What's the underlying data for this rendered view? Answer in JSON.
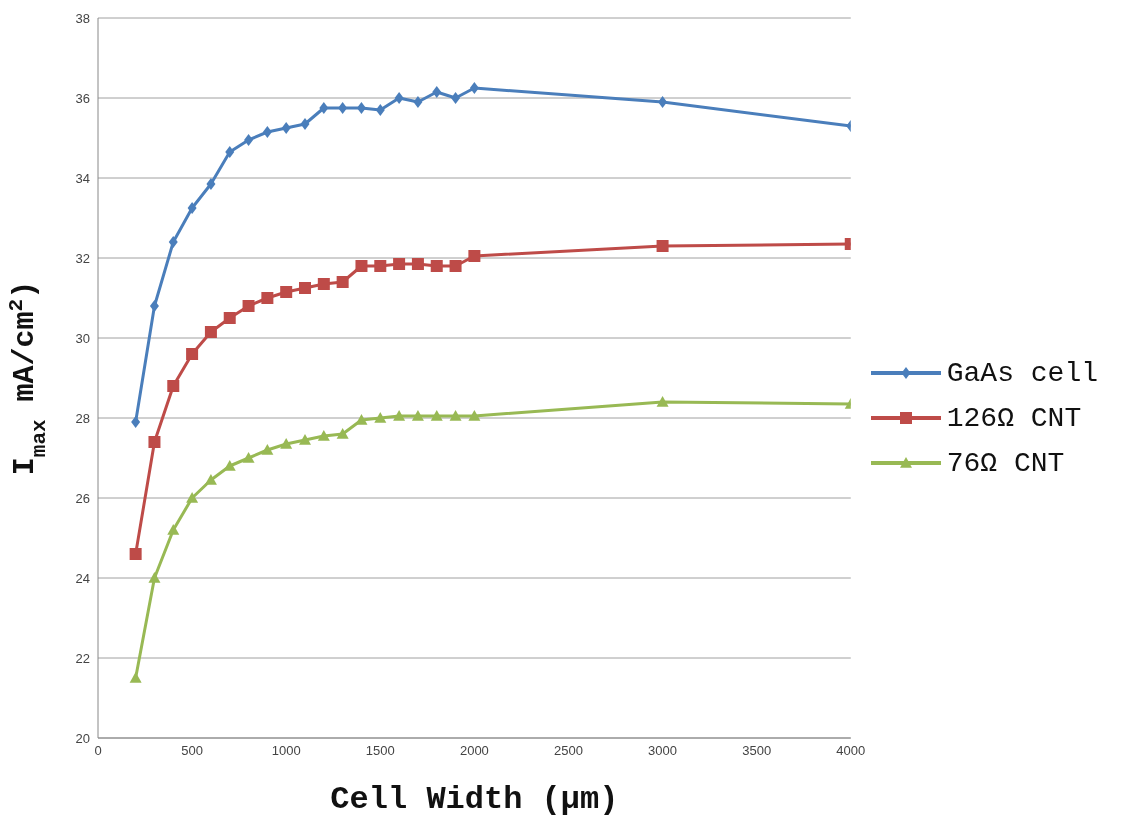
{
  "chart_data": {
    "type": "line",
    "xlabel": "Cell Width (µm)",
    "ylabel": "I$_{max}$ mA/cm$^{2}$)",
    "x": [
      200,
      300,
      400,
      500,
      600,
      700,
      800,
      900,
      1000,
      1100,
      1200,
      1300,
      1400,
      1500,
      1600,
      1700,
      1800,
      1900,
      2000,
      3000,
      4000
    ],
    "series": [
      {
        "name": "GaAs cell",
        "color": "#4a7ebb",
        "marker": "diamond",
        "values": [
          27.9,
          30.8,
          32.4,
          33.25,
          33.85,
          34.65,
          34.95,
          35.15,
          35.25,
          35.35,
          35.75,
          35.75,
          35.75,
          35.7,
          36.0,
          35.9,
          36.15,
          36.0,
          36.25,
          35.9,
          35.3
        ]
      },
      {
        "name": "126Ω CNT",
        "color": "#be4b48",
        "marker": "square",
        "values": [
          24.6,
          27.4,
          28.8,
          29.6,
          30.15,
          30.5,
          30.8,
          31.0,
          31.15,
          31.25,
          31.35,
          31.4,
          31.8,
          31.8,
          31.85,
          31.85,
          31.8,
          31.8,
          32.05,
          32.3,
          32.35
        ]
      },
      {
        "name": "76Ω CNT",
        "color": "#98b954",
        "marker": "triangle",
        "values": [
          21.5,
          24.0,
          25.2,
          26.0,
          26.45,
          26.8,
          27.0,
          27.2,
          27.35,
          27.45,
          27.55,
          27.6,
          27.95,
          28.0,
          28.05,
          28.05,
          28.05,
          28.05,
          28.05,
          28.4,
          28.35
        ]
      }
    ],
    "xlim": [
      0,
      4000
    ],
    "xticks": [
      0,
      500,
      1000,
      1500,
      2000,
      2500,
      3000,
      3500,
      4000
    ],
    "ylim": [
      20,
      38
    ],
    "yticks": [
      20,
      22,
      24,
      26,
      28,
      30,
      32,
      34,
      36,
      38
    ],
    "grid": "y",
    "legend": "right"
  }
}
